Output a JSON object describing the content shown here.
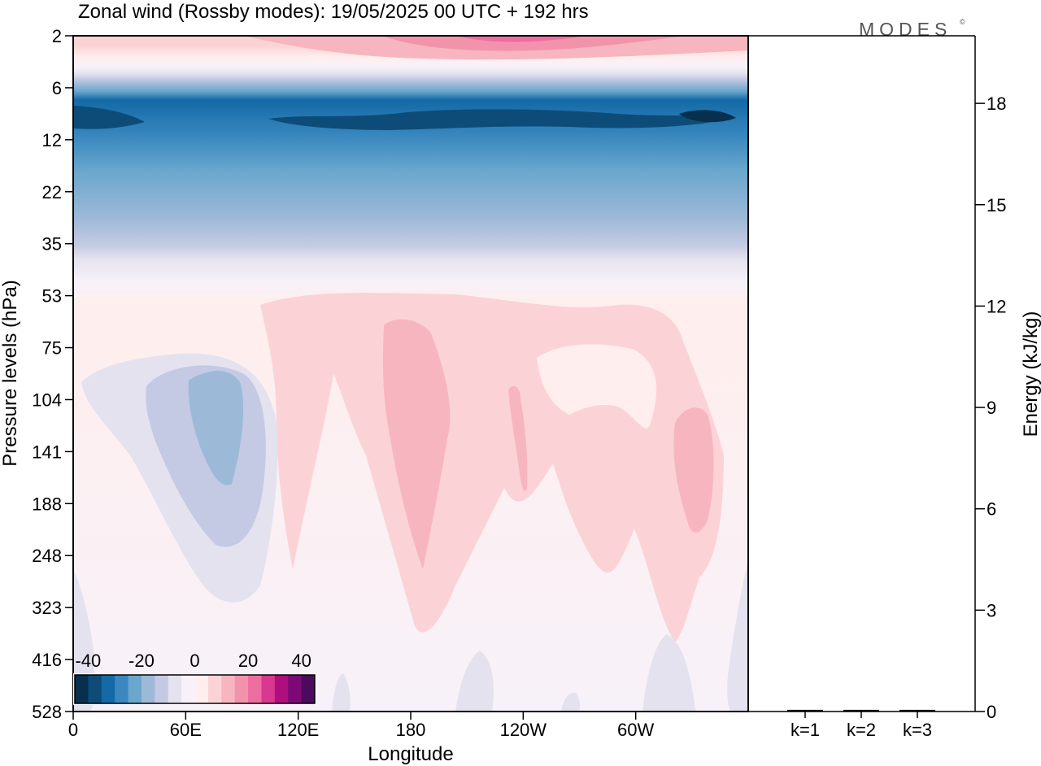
{
  "chart_data": {
    "type": "contour",
    "title": "Zonal wind (Rossby modes):  19/05/2025  00 UTC  + 192 hrs",
    "logo": "MODES",
    "logo_mark": "©",
    "xlabel": "Longitude",
    "ylabel": "Pressure levels (hPa)",
    "x_ticks": [
      "0",
      "60E",
      "120E",
      "180",
      "120W",
      "60W"
    ],
    "x_tick_values": [
      0,
      60,
      120,
      180,
      240,
      300
    ],
    "x_range": [
      0,
      360
    ],
    "y_ticks": [
      "2",
      "6",
      "12",
      "22",
      "35",
      "53",
      "75",
      "104",
      "141",
      "188",
      "248",
      "323",
      "416",
      "528"
    ],
    "colorbar": {
      "labels": [
        "-40",
        "-20",
        "0",
        "20",
        "40"
      ],
      "label_values": [
        -40,
        -20,
        0,
        20,
        40
      ],
      "range": [
        -45,
        45
      ],
      "step": 5,
      "colors": [
        "#08304e",
        "#0d4c78",
        "#136aa6",
        "#3a88bf",
        "#6aa7cd",
        "#9db9d8",
        "#c4cae3",
        "#e4e2ef",
        "#f7f2f9",
        "#ffeeed",
        "#fbd3d6",
        "#f7b5bf",
        "#f393ab",
        "#ed6da1",
        "#d8388f",
        "#ae0f7c",
        "#7d0a74",
        "#4b0a5c"
      ]
    },
    "energy_panel": {
      "ylabel": "Energy (kJ/kg)",
      "y_ticks": [
        "0",
        "3",
        "6",
        "9",
        "12",
        "15",
        "18"
      ],
      "y_tick_values": [
        0,
        3,
        6,
        9,
        12,
        15,
        18
      ],
      "ylim": [
        0,
        20
      ],
      "categories": [
        "k=1",
        "k=2",
        "k=3"
      ],
      "values": [
        0.05,
        0.05,
        0.05
      ]
    }
  }
}
